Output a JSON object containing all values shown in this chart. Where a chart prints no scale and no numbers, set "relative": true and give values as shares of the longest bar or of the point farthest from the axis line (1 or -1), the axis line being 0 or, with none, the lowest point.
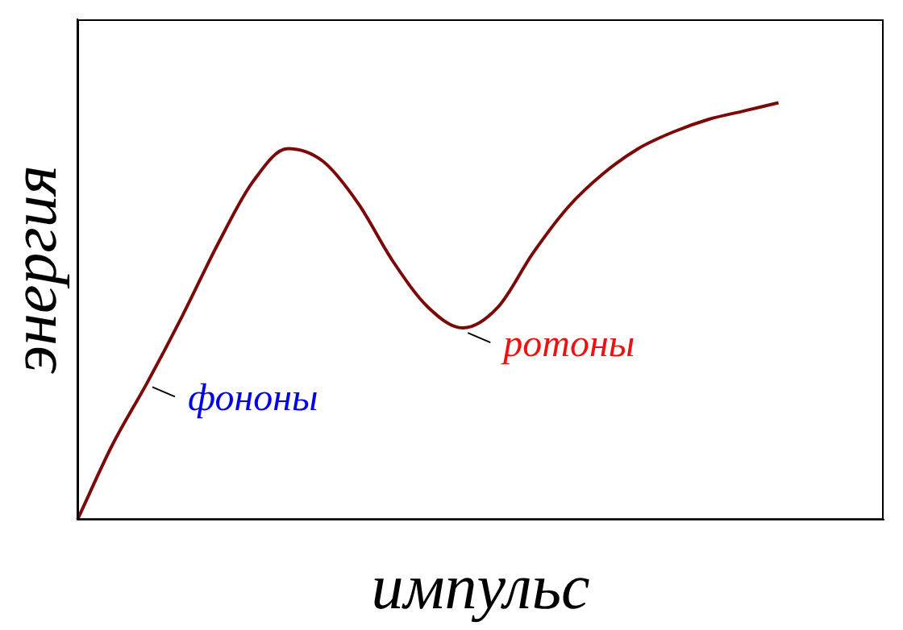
{
  "chart_data": {
    "type": "line",
    "relative": true,
    "xlabel": "импульс",
    "ylabel": "энергия",
    "categories": [
      null,
      null,
      null,
      null,
      null,
      null,
      null,
      null,
      null,
      null,
      null,
      null,
      null,
      null,
      null,
      null,
      null,
      null,
      null,
      null,
      null,
      null,
      null,
      null
    ],
    "series": [
      {
        "color": "#7a0a0a",
        "values": [
          0,
          0.18,
          0.33,
          0.49,
          0.66,
          0.81,
          0.89,
          0.86,
          0.76,
          0.62,
          0.51,
          0.46,
          0.51,
          0.64,
          0.75,
          0.83,
          0.89,
          0.93,
          0.96,
          0.98,
          1,
          null,
          null,
          null
        ]
      }
    ],
    "annotations": [
      "фононы",
      "ротоны"
    ],
    "marker": "none",
    "grid": false,
    "legend": false
  }
}
